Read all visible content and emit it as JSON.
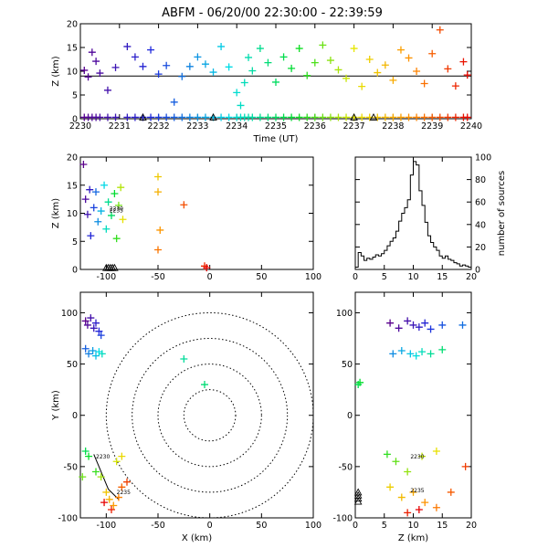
{
  "title": "ABFM - 06/20/00 22:30:00 - 22:39:59",
  "chart_data": [
    {
      "type": "scatter",
      "panel": "time-height",
      "xlabel": "Time (UT)",
      "ylabel": "Z (km)",
      "xlim": [
        2230,
        2240
      ],
      "ylim": [
        0,
        20
      ],
      "x_ticks": [
        "2230",
        "2231",
        "2232",
        "2233",
        "2234",
        "2235",
        "2236",
        "2237",
        "2238",
        "2239",
        "2240"
      ],
      "y_ticks": [
        "0",
        "5",
        "10",
        "15",
        "20"
      ],
      "trend_line_y": 9,
      "station_markers_x": [
        2231.6,
        2233.4,
        2237.0,
        2237.5
      ],
      "color_scale": "time: purple (22:30) to red (22:40)",
      "sources": [
        {
          "t": 2230.1,
          "z": 10.2
        },
        {
          "t": 2230.2,
          "z": 8.8
        },
        {
          "t": 2230.3,
          "z": 14.0
        },
        {
          "t": 2230.4,
          "z": 12.1
        },
        {
          "t": 2230.5,
          "z": 9.6
        },
        {
          "t": 2230.7,
          "z": 6.0
        },
        {
          "t": 2230.9,
          "z": 10.8
        },
        {
          "t": 2231.2,
          "z": 15.2
        },
        {
          "t": 2231.4,
          "z": 13.0
        },
        {
          "t": 2231.6,
          "z": 11.0
        },
        {
          "t": 2231.8,
          "z": 14.5
        },
        {
          "t": 2232.0,
          "z": 9.4
        },
        {
          "t": 2232.2,
          "z": 11.2
        },
        {
          "t": 2232.4,
          "z": 3.5
        },
        {
          "t": 2232.6,
          "z": 8.9
        },
        {
          "t": 2232.8,
          "z": 11.0
        },
        {
          "t": 2233.0,
          "z": 13.0
        },
        {
          "t": 2233.2,
          "z": 11.5
        },
        {
          "t": 2233.4,
          "z": 9.8
        },
        {
          "t": 2233.6,
          "z": 15.2
        },
        {
          "t": 2233.8,
          "z": 10.9
        },
        {
          "t": 2234.0,
          "z": 5.5
        },
        {
          "t": 2234.1,
          "z": 2.8
        },
        {
          "t": 2234.2,
          "z": 7.6
        },
        {
          "t": 2234.3,
          "z": 12.9
        },
        {
          "t": 2234.4,
          "z": 10.1
        },
        {
          "t": 2234.6,
          "z": 14.8
        },
        {
          "t": 2234.8,
          "z": 11.8
        },
        {
          "t": 2235.0,
          "z": 7.7
        },
        {
          "t": 2235.2,
          "z": 13.0
        },
        {
          "t": 2235.4,
          "z": 10.6
        },
        {
          "t": 2235.6,
          "z": 14.8
        },
        {
          "t": 2235.8,
          "z": 9.1
        },
        {
          "t": 2236.0,
          "z": 11.8
        },
        {
          "t": 2236.2,
          "z": 15.5
        },
        {
          "t": 2236.4,
          "z": 12.3
        },
        {
          "t": 2236.6,
          "z": 10.3
        },
        {
          "t": 2236.8,
          "z": 8.5
        },
        {
          "t": 2237.0,
          "z": 14.8
        },
        {
          "t": 2237.2,
          "z": 6.8
        },
        {
          "t": 2237.4,
          "z": 12.5
        },
        {
          "t": 2237.6,
          "z": 9.7
        },
        {
          "t": 2237.8,
          "z": 11.3
        },
        {
          "t": 2238.0,
          "z": 8.1
        },
        {
          "t": 2238.2,
          "z": 14.5
        },
        {
          "t": 2238.4,
          "z": 12.8
        },
        {
          "t": 2238.6,
          "z": 10.0
        },
        {
          "t": 2238.8,
          "z": 7.4
        },
        {
          "t": 2239.0,
          "z": 13.7
        },
        {
          "t": 2239.2,
          "z": 18.7
        },
        {
          "t": 2239.4,
          "z": 10.5
        },
        {
          "t": 2239.6,
          "z": 6.9
        },
        {
          "t": 2239.8,
          "z": 12.0
        },
        {
          "t": 2239.9,
          "z": 9.2
        }
      ]
    },
    {
      "type": "scatter",
      "panel": "x-z",
      "ylabel": "Z (km)",
      "xlim": [
        -125,
        100
      ],
      "ylim": [
        0,
        20
      ],
      "x_ticks": [
        "-100",
        "-50",
        "0",
        "50",
        "100"
      ],
      "y_ticks": [
        "0",
        "5",
        "10",
        "15",
        "20"
      ],
      "station_markers_x": [
        -100,
        -98,
        -96,
        -94,
        -92
      ],
      "time_labels": [
        "2230",
        "2235"
      ],
      "sources": [
        {
          "x": -122,
          "z": 18.7
        },
        {
          "x": -120,
          "z": 12.5
        },
        {
          "x": -118,
          "z": 9.8
        },
        {
          "x": -116,
          "z": 14.2
        },
        {
          "x": -115,
          "z": 6.0
        },
        {
          "x": -112,
          "z": 11.0
        },
        {
          "x": -110,
          "z": 13.8
        },
        {
          "x": -108,
          "z": 8.5
        },
        {
          "x": -105,
          "z": 10.4
        },
        {
          "x": -102,
          "z": 15.0
        },
        {
          "x": -100,
          "z": 7.2
        },
        {
          "x": -98,
          "z": 12.0
        },
        {
          "x": -95,
          "z": 9.6
        },
        {
          "x": -92,
          "z": 13.5
        },
        {
          "x": -90,
          "z": 5.5
        },
        {
          "x": -88,
          "z": 11.4
        },
        {
          "x": -86,
          "z": 14.6
        },
        {
          "x": -84,
          "z": 8.9
        },
        {
          "x": -50,
          "z": 16.5
        },
        {
          "x": -50,
          "z": 13.8
        },
        {
          "x": -48,
          "z": 7.0
        },
        {
          "x": -50,
          "z": 3.5
        },
        {
          "x": -25,
          "z": 11.5
        },
        {
          "x": -5,
          "z": 0.6
        },
        {
          "x": -3,
          "z": 0.3
        }
      ]
    },
    {
      "type": "line",
      "panel": "histogram",
      "xlabel": "",
      "ylabel": "number of sources",
      "xlim": [
        0,
        20
      ],
      "ylim": [
        0,
        100
      ],
      "x_ticks": [
        "0",
        "5",
        "10",
        "15",
        "20"
      ],
      "y_ticks": [
        "0",
        "20",
        "40",
        "60",
        "80",
        "100"
      ],
      "x": [
        0,
        0.5,
        1,
        1.5,
        2,
        2.5,
        3,
        3.5,
        4,
        4.5,
        5,
        5.5,
        6,
        6.5,
        7,
        7.5,
        8,
        8.5,
        9,
        9.5,
        10,
        10.5,
        11,
        11.5,
        12,
        12.5,
        13,
        13.5,
        14,
        14.5,
        15,
        15.5,
        16,
        16.5,
        17,
        17.5,
        18,
        18.5,
        19,
        19.5
      ],
      "values": [
        2,
        15,
        12,
        8,
        10,
        9,
        11,
        13,
        12,
        14,
        17,
        21,
        25,
        28,
        34,
        43,
        50,
        55,
        62,
        84,
        96,
        93,
        70,
        57,
        42,
        30,
        24,
        20,
        17,
        12,
        10,
        12,
        9,
        8,
        6,
        5,
        3,
        4,
        3,
        2
      ]
    },
    {
      "type": "scatter",
      "panel": "plan-view",
      "xlabel": "X (km)",
      "ylabel": "Y (km)",
      "xlim": [
        -125,
        100
      ],
      "ylim": [
        -100,
        120
      ],
      "x_ticks": [
        "-100",
        "-50",
        "0",
        "50",
        "100"
      ],
      "y_ticks": [
        "-100",
        "-50",
        "0",
        "50",
        "100"
      ],
      "range_rings_km": [
        25,
        50,
        75,
        100
      ],
      "time_labels": [
        "2230",
        "2235"
      ],
      "sources": [
        {
          "x": -120,
          "y": 92
        },
        {
          "x": -118,
          "y": 88
        },
        {
          "x": -115,
          "y": 95
        },
        {
          "x": -112,
          "y": 85
        },
        {
          "x": -110,
          "y": 90
        },
        {
          "x": -107,
          "y": 82
        },
        {
          "x": -105,
          "y": 78
        },
        {
          "x": -120,
          "y": 65
        },
        {
          "x": -117,
          "y": 60
        },
        {
          "x": -113,
          "y": 63
        },
        {
          "x": -110,
          "y": 58
        },
        {
          "x": -107,
          "y": 62
        },
        {
          "x": -104,
          "y": 60
        },
        {
          "x": -25,
          "y": 55
        },
        {
          "x": -5,
          "y": 30
        },
        {
          "x": -120,
          "y": -35
        },
        {
          "x": -117,
          "y": -40
        },
        {
          "x": -110,
          "y": -55
        },
        {
          "x": -123,
          "y": -60
        },
        {
          "x": -105,
          "y": -60
        },
        {
          "x": -90,
          "y": -45
        },
        {
          "x": -85,
          "y": -40
        },
        {
          "x": -100,
          "y": -75
        },
        {
          "x": -97,
          "y": -82
        },
        {
          "x": -93,
          "y": -88
        },
        {
          "x": -88,
          "y": -80
        },
        {
          "x": -85,
          "y": -70
        },
        {
          "x": -80,
          "y": -65
        },
        {
          "x": -95,
          "y": -92
        },
        {
          "x": -102,
          "y": -85
        }
      ]
    },
    {
      "type": "scatter",
      "panel": "z-y",
      "xlabel": "Z (km)",
      "xlim": [
        0,
        20
      ],
      "ylim": [
        -100,
        120
      ],
      "x_ticks": [
        "0",
        "5",
        "10",
        "15",
        "20"
      ],
      "y_ticks": [
        "-100",
        "-50",
        "0",
        "50",
        "100"
      ],
      "time_labels": [
        "2230",
        "2235"
      ],
      "sources": [
        {
          "z": 6.0,
          "y": 90
        },
        {
          "z": 7.5,
          "y": 85
        },
        {
          "z": 9.0,
          "y": 92
        },
        {
          "z": 10.0,
          "y": 88
        },
        {
          "z": 11.0,
          "y": 86
        },
        {
          "z": 12.0,
          "y": 90
        },
        {
          "z": 13.0,
          "y": 84
        },
        {
          "z": 15.0,
          "y": 88
        },
        {
          "z": 18.5,
          "y": 88
        },
        {
          "z": 6.5,
          "y": 60
        },
        {
          "z": 8.0,
          "y": 63
        },
        {
          "z": 9.5,
          "y": 60
        },
        {
          "z": 10.5,
          "y": 58
        },
        {
          "z": 11.5,
          "y": 62
        },
        {
          "z": 13.0,
          "y": 60
        },
        {
          "z": 15.0,
          "y": 64
        },
        {
          "z": 0.5,
          "y": 30
        },
        {
          "z": 0.8,
          "y": 32
        },
        {
          "z": 5.5,
          "y": -38
        },
        {
          "z": 7.0,
          "y": -45
        },
        {
          "z": 9.0,
          "y": -55
        },
        {
          "z": 11.5,
          "y": -40
        },
        {
          "z": 14.0,
          "y": -35
        },
        {
          "z": 6.0,
          "y": -70
        },
        {
          "z": 8.0,
          "y": -80
        },
        {
          "z": 10.0,
          "y": -75
        },
        {
          "z": 12.0,
          "y": -85
        },
        {
          "z": 14.0,
          "y": -90
        },
        {
          "z": 16.5,
          "y": -75
        },
        {
          "z": 19.0,
          "y": -50
        },
        {
          "z": 9.0,
          "y": -95
        },
        {
          "z": 11.0,
          "y": -92
        }
      ]
    }
  ]
}
